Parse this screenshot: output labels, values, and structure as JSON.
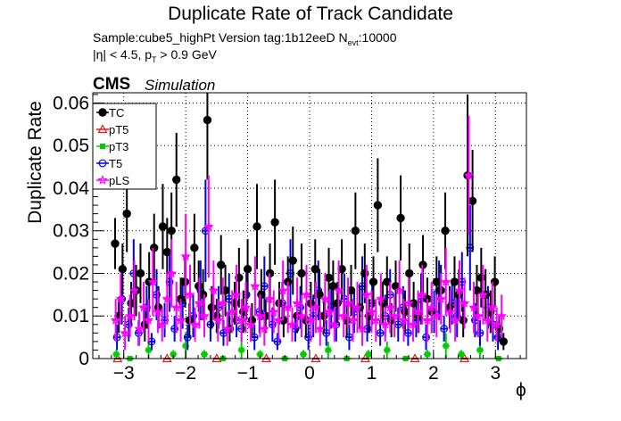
{
  "header": {
    "title": "Duplicate Rate of Track Candidate",
    "sample_line": "Sample:cube5_highPt   Version tag:1b12eeD  N",
    "sample_sub": "evt",
    "sample_tail": ":10000",
    "cut_line_a": "|η| < 4.5, p",
    "cut_sub": "T",
    "cut_line_b": " > 0.9 GeV",
    "cms": "CMS",
    "simulation": "Simulation"
  },
  "chart_data": {
    "type": "scatter",
    "title": "Duplicate Rate of Track Candidate",
    "xlabel": "ϕ",
    "ylabel": "Duplicate Rate",
    "xlim": [
      -3.5,
      3.5
    ],
    "ylim": [
      0,
      0.0624
    ],
    "xticks": [
      -3,
      -2,
      -1,
      0,
      1,
      2,
      3
    ],
    "xtick_labels": [
      "−3",
      "−2",
      "−1",
      "0",
      "1",
      "2",
      "3"
    ],
    "yticks": [
      0,
      0.01,
      0.02,
      0.03,
      0.04,
      0.05,
      0.06
    ],
    "ytick_labels": [
      "0",
      "0.01",
      "0.02",
      "0.03",
      "0.04",
      "0.05",
      "0.06"
    ],
    "grid": true,
    "legend_position": "top-left",
    "series": [
      {
        "name": "TC",
        "color": "#000000",
        "marker": "filled-circle",
        "x": [
          -3.14,
          -3.08,
          -3.02,
          -2.95,
          -2.88,
          -2.8,
          -2.73,
          -2.66,
          -2.59,
          -2.51,
          -2.44,
          -2.37,
          -2.3,
          -2.23,
          -2.15,
          -2.08,
          -2.01,
          -1.94,
          -1.86,
          -1.79,
          -1.72,
          -1.65,
          -1.58,
          -1.5,
          -1.43,
          -1.36,
          -1.29,
          -1.21,
          -1.14,
          -1.07,
          -1.0,
          -0.93,
          -0.85,
          -0.78,
          -0.71,
          -0.64,
          -0.56,
          -0.49,
          -0.42,
          -0.35,
          -0.27,
          -0.2,
          -0.13,
          -0.06,
          0.02,
          0.09,
          0.16,
          0.23,
          0.31,
          0.38,
          0.45,
          0.52,
          0.6,
          0.67,
          0.74,
          0.81,
          0.89,
          0.96,
          1.03,
          1.1,
          1.18,
          1.25,
          1.32,
          1.39,
          1.47,
          1.54,
          1.61,
          1.68,
          1.76,
          1.83,
          1.9,
          1.97,
          2.05,
          2.12,
          2.19,
          2.26,
          2.34,
          2.41,
          2.48,
          2.55,
          2.63,
          2.7,
          2.77,
          2.84,
          2.92,
          2.99,
          3.06,
          3.13
        ],
        "y": [
          0.027,
          0.01,
          0.021,
          0.034,
          0.013,
          0.016,
          0.02,
          0.008,
          0.018,
          0.026,
          0.012,
          0.031,
          0.025,
          0.03,
          0.042,
          0.014,
          0.018,
          0.009,
          0.026,
          0.017,
          0.015,
          0.056,
          0.012,
          0.01,
          0.022,
          0.016,
          0.007,
          0.013,
          0.019,
          0.011,
          0.021,
          0.009,
          0.031,
          0.015,
          0.01,
          0.02,
          0.032,
          0.013,
          0.009,
          0.018,
          0.023,
          0.01,
          0.02,
          0.009,
          0.013,
          0.021,
          0.015,
          0.01,
          0.019,
          0.017,
          0.013,
          0.021,
          0.009,
          0.016,
          0.03,
          0.012,
          0.02,
          0.01,
          0.018,
          0.036,
          0.013,
          0.018,
          0.009,
          0.017,
          0.033,
          0.011,
          0.02,
          0.013,
          0.01,
          0.022,
          0.014,
          0.011,
          0.018,
          0.016,
          0.03,
          0.012,
          0.018,
          0.015,
          0.009,
          0.043,
          0.037,
          0.016,
          0.019,
          0.015,
          0.011,
          0.018,
          0.007,
          0.004
        ],
        "yerr": [
          0.006,
          0.004,
          0.006,
          0.009,
          0.005,
          0.006,
          0.007,
          0.004,
          0.007,
          0.008,
          0.005,
          0.01,
          0.008,
          0.009,
          0.011,
          0.005,
          0.006,
          0.004,
          0.008,
          0.006,
          0.006,
          0.014,
          0.005,
          0.004,
          0.007,
          0.006,
          0.003,
          0.005,
          0.007,
          0.005,
          0.007,
          0.004,
          0.01,
          0.006,
          0.004,
          0.007,
          0.01,
          0.005,
          0.004,
          0.006,
          0.008,
          0.004,
          0.007,
          0.004,
          0.005,
          0.007,
          0.006,
          0.004,
          0.007,
          0.006,
          0.005,
          0.007,
          0.004,
          0.006,
          0.009,
          0.005,
          0.007,
          0.004,
          0.006,
          0.011,
          0.005,
          0.006,
          0.004,
          0.006,
          0.01,
          0.005,
          0.007,
          0.005,
          0.004,
          0.007,
          0.005,
          0.005,
          0.006,
          0.006,
          0.009,
          0.005,
          0.006,
          0.006,
          0.004,
          0.019,
          0.012,
          0.006,
          0.007,
          0.006,
          0.005,
          0.006,
          0.003,
          0.002
        ]
      },
      {
        "name": "pT5",
        "color": "#e41a1c",
        "marker": "open-triangle",
        "x": [
          -3.1,
          -2.3,
          -1.5,
          -0.7,
          0.1,
          0.9,
          1.7,
          2.5
        ],
        "y": [
          0.0,
          0.0,
          0.0,
          0.0,
          0.0,
          0.0,
          0.0,
          0.0
        ],
        "yerr": [
          0.0,
          0.0,
          0.0,
          0.0,
          0.0,
          0.0,
          0.0,
          0.0
        ]
      },
      {
        "name": "pT3",
        "color": "#00cc00",
        "marker": "filled-square",
        "x": [
          -3.12,
          -2.9,
          -2.6,
          -2.2,
          -2.0,
          -1.7,
          -1.4,
          -1.1,
          -0.8,
          -0.4,
          -0.1,
          0.3,
          0.6,
          0.95,
          1.25,
          1.55,
          1.9,
          2.2,
          2.45,
          2.75,
          3.05
        ],
        "y": [
          0.001,
          0.0,
          0.002,
          0.001,
          0.003,
          0.001,
          0.0,
          0.002,
          0.001,
          0.0,
          0.001,
          0.002,
          0.0,
          0.001,
          0.002,
          0.0,
          0.001,
          0.003,
          0.001,
          0.002,
          0.0
        ],
        "yerr": [
          0.001,
          0.0,
          0.002,
          0.001,
          0.003,
          0.001,
          0.0,
          0.002,
          0.001,
          0.0,
          0.001,
          0.002,
          0.0,
          0.001,
          0.002,
          0.0,
          0.001,
          0.003,
          0.001,
          0.002,
          0.0
        ]
      },
      {
        "name": "T5",
        "color": "#0000ee",
        "marker": "open-circle",
        "x": [
          -3.11,
          -3.03,
          -2.92,
          -2.84,
          -2.76,
          -2.63,
          -2.55,
          -2.47,
          -2.34,
          -2.26,
          -2.18,
          -2.05,
          -1.97,
          -1.88,
          -1.76,
          -1.68,
          -1.6,
          -1.47,
          -1.39,
          -1.3,
          -1.18,
          -1.1,
          -1.02,
          -0.89,
          -0.81,
          -0.73,
          -0.6,
          -0.52,
          -0.44,
          -0.31,
          -0.23,
          -0.15,
          -0.02,
          0.06,
          0.14,
          0.27,
          0.35,
          0.43,
          0.56,
          0.64,
          0.72,
          0.85,
          0.93,
          1.01,
          1.14,
          1.22,
          1.3,
          1.43,
          1.51,
          1.59,
          1.72,
          1.8,
          1.88,
          2.01,
          2.09,
          2.17,
          2.3,
          2.38,
          2.46,
          2.59,
          2.67,
          2.75,
          2.88,
          2.96,
          3.04
        ],
        "y": [
          0.005,
          0.014,
          0.008,
          0.02,
          0.006,
          0.012,
          0.004,
          0.015,
          0.009,
          0.018,
          0.007,
          0.013,
          0.005,
          0.01,
          0.016,
          0.03,
          0.008,
          0.012,
          0.006,
          0.014,
          0.009,
          0.007,
          0.015,
          0.005,
          0.011,
          0.017,
          0.008,
          0.004,
          0.013,
          0.02,
          0.007,
          0.012,
          0.005,
          0.01,
          0.016,
          0.006,
          0.012,
          0.008,
          0.014,
          0.005,
          0.011,
          0.017,
          0.007,
          0.013,
          0.006,
          0.01,
          0.015,
          0.008,
          0.012,
          0.006,
          0.009,
          0.014,
          0.005,
          0.011,
          0.016,
          0.007,
          0.013,
          0.01,
          0.018,
          0.026,
          0.009,
          0.006,
          0.012,
          0.008,
          0.005
        ],
        "yerr": [
          0.003,
          0.006,
          0.004,
          0.008,
          0.003,
          0.005,
          0.002,
          0.006,
          0.004,
          0.007,
          0.003,
          0.006,
          0.003,
          0.005,
          0.007,
          0.012,
          0.004,
          0.005,
          0.003,
          0.006,
          0.004,
          0.003,
          0.006,
          0.003,
          0.005,
          0.007,
          0.004,
          0.002,
          0.005,
          0.008,
          0.003,
          0.005,
          0.003,
          0.005,
          0.007,
          0.003,
          0.005,
          0.004,
          0.006,
          0.003,
          0.005,
          0.007,
          0.003,
          0.005,
          0.003,
          0.005,
          0.006,
          0.004,
          0.005,
          0.003,
          0.004,
          0.006,
          0.003,
          0.005,
          0.007,
          0.003,
          0.005,
          0.005,
          0.007,
          0.01,
          0.004,
          0.003,
          0.005,
          0.004,
          0.003
        ]
      },
      {
        "name": "pLS",
        "color": "#ff00ff",
        "marker": "open-star",
        "x": [
          -3.13,
          -3.05,
          -2.98,
          -2.9,
          -2.83,
          -2.75,
          -2.68,
          -2.6,
          -2.53,
          -2.45,
          -2.38,
          -2.3,
          -2.23,
          -2.15,
          -2.08,
          -2.0,
          -1.93,
          -1.85,
          -1.78,
          -1.7,
          -1.63,
          -1.55,
          -1.48,
          -1.4,
          -1.33,
          -1.25,
          -1.18,
          -1.1,
          -1.03,
          -0.95,
          -0.88,
          -0.8,
          -0.73,
          -0.65,
          -0.58,
          -0.5,
          -0.43,
          -0.35,
          -0.28,
          -0.2,
          -0.13,
          -0.05,
          0.02,
          0.1,
          0.17,
          0.25,
          0.32,
          0.4,
          0.47,
          0.55,
          0.62,
          0.7,
          0.77,
          0.85,
          0.92,
          1.0,
          1.07,
          1.15,
          1.22,
          1.3,
          1.37,
          1.45,
          1.52,
          1.6,
          1.67,
          1.75,
          1.82,
          1.9,
          1.97,
          2.05,
          2.12,
          2.2,
          2.27,
          2.35,
          2.42,
          2.5,
          2.57,
          2.65,
          2.72,
          2.8,
          2.87,
          2.95,
          3.02,
          3.1
        ],
        "y": [
          0.009,
          0.014,
          0.006,
          0.01,
          0.016,
          0.007,
          0.012,
          0.009,
          0.018,
          0.011,
          0.008,
          0.014,
          0.02,
          0.012,
          0.009,
          0.024,
          0.015,
          0.008,
          0.013,
          0.01,
          0.031,
          0.016,
          0.009,
          0.013,
          0.007,
          0.011,
          0.015,
          0.009,
          0.012,
          0.008,
          0.017,
          0.01,
          0.007,
          0.014,
          0.011,
          0.009,
          0.016,
          0.012,
          0.008,
          0.013,
          0.01,
          0.015,
          0.009,
          0.012,
          0.007,
          0.014,
          0.011,
          0.008,
          0.016,
          0.01,
          0.013,
          0.009,
          0.012,
          0.007,
          0.015,
          0.011,
          0.009,
          0.014,
          0.008,
          0.012,
          0.01,
          0.016,
          0.009,
          0.013,
          0.008,
          0.011,
          0.015,
          0.009,
          0.012,
          0.01,
          0.014,
          0.018,
          0.011,
          0.009,
          0.016,
          0.013,
          0.043,
          0.012,
          0.01,
          0.015,
          0.009,
          0.012,
          0.008,
          0.01
        ],
        "yerr": [
          0.005,
          0.006,
          0.004,
          0.005,
          0.007,
          0.004,
          0.006,
          0.005,
          0.008,
          0.005,
          0.004,
          0.006,
          0.008,
          0.006,
          0.005,
          0.01,
          0.007,
          0.004,
          0.006,
          0.005,
          0.012,
          0.007,
          0.005,
          0.006,
          0.004,
          0.005,
          0.007,
          0.005,
          0.006,
          0.004,
          0.007,
          0.005,
          0.004,
          0.006,
          0.005,
          0.005,
          0.007,
          0.006,
          0.004,
          0.006,
          0.005,
          0.007,
          0.005,
          0.006,
          0.004,
          0.006,
          0.005,
          0.004,
          0.007,
          0.005,
          0.006,
          0.005,
          0.006,
          0.004,
          0.007,
          0.005,
          0.005,
          0.006,
          0.004,
          0.006,
          0.005,
          0.007,
          0.005,
          0.006,
          0.004,
          0.005,
          0.007,
          0.005,
          0.006,
          0.005,
          0.006,
          0.008,
          0.005,
          0.005,
          0.007,
          0.006,
          0.014,
          0.006,
          0.005,
          0.007,
          0.005,
          0.006,
          0.004,
          0.005
        ]
      }
    ]
  }
}
